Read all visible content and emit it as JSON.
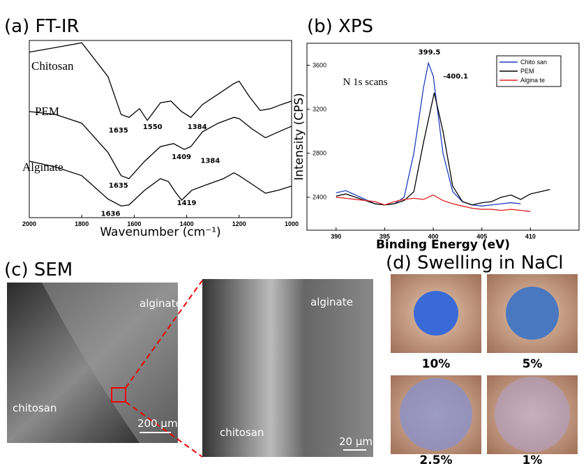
{
  "chart_data": [
    {
      "type": "line",
      "title": "(a) FT-IR",
      "xlabel": "Wavenumber (cm⁻¹)",
      "xlim": [
        2000,
        1000
      ],
      "xticks": [
        2000,
        1800,
        1600,
        1400,
        1200,
        1000
      ],
      "ylim": [
        0,
        100
      ],
      "series": [
        {
          "name": "Chitosan",
          "color": "#000000",
          "x": [
            2000,
            1900,
            1800,
            1700,
            1650,
            1620,
            1580,
            1550,
            1500,
            1460,
            1420,
            1384,
            1340,
            1280,
            1220,
            1200,
            1160,
            1120,
            1080,
            1040,
            1000
          ],
          "values": [
            93.4,
            96,
            98.7,
            79.6,
            58.2,
            56.6,
            61.5,
            54.9,
            64.8,
            65.8,
            59.9,
            56.6,
            63.8,
            69.7,
            75.7,
            77,
            68.1,
            60.5,
            61.5,
            63.8,
            65.8
          ]
        },
        {
          "name": "PEM",
          "color": "#000000",
          "x": [
            2000,
            1900,
            1800,
            1700,
            1650,
            1620,
            1560,
            1500,
            1450,
            1409,
            1384,
            1340,
            1280,
            1220,
            1200,
            1150,
            1100,
            1050,
            1000
          ],
          "values": [
            59.9,
            58.2,
            53.3,
            36.8,
            23.7,
            22,
            31.9,
            40.1,
            41.8,
            38.5,
            40.1,
            48.4,
            53.3,
            56.6,
            55.9,
            50,
            45.1,
            48.4,
            51.6
          ]
        },
        {
          "name": "Alginate",
          "color": "#000000",
          "x": [
            2000,
            1900,
            1800,
            1700,
            1650,
            1620,
            1560,
            1500,
            1470,
            1440,
            1419,
            1380,
            1320,
            1260,
            1220,
            1200,
            1150,
            1100,
            1050,
            1000
          ],
          "values": [
            31.9,
            28.6,
            23.7,
            10.5,
            6.6,
            7.2,
            15.5,
            22,
            20.4,
            13.8,
            9.9,
            15.5,
            18.8,
            22,
            25.3,
            23.7,
            18.8,
            13.8,
            15.5,
            17.8
          ]
        }
      ],
      "annotations": [
        {
          "text": "1635",
          "x": 1660,
          "y": 48
        },
        {
          "text": "1550",
          "x": 1530,
          "y": 50
        },
        {
          "text": "1384",
          "x": 1360,
          "y": 50
        },
        {
          "text": "1409",
          "x": 1420,
          "y": 33
        },
        {
          "text": "1384",
          "x": 1310,
          "y": 31
        },
        {
          "text": "1635",
          "x": 1660,
          "y": 17
        },
        {
          "text": "1419",
          "x": 1400,
          "y": 7
        },
        {
          "text": "1636",
          "x": 1690,
          "y": 1
        }
      ]
    },
    {
      "type": "line",
      "title": "(b) XPS",
      "xlabel": "Binding Energy (eV)",
      "ylabel": "Intensity (CPS)",
      "xlim": [
        387,
        415
      ],
      "xticks": [
        390,
        395,
        400,
        405,
        410
      ],
      "ylim": [
        2100,
        3800
      ],
      "yticks": [
        2400,
        2800,
        3200,
        3600
      ],
      "legend": "upper right",
      "series": [
        {
          "name": "Chito san",
          "color": "#1f3fbf",
          "x": [
            390,
            391,
            392,
            393,
            394,
            395,
            396,
            397,
            398,
            399,
            399.5,
            400,
            401,
            402,
            403,
            404,
            405,
            406,
            407,
            408,
            409
          ],
          "values": [
            2440,
            2460,
            2420,
            2380,
            2340,
            2330,
            2340,
            2400,
            2800,
            3400,
            3620,
            3500,
            2800,
            2450,
            2360,
            2330,
            2320,
            2330,
            2340,
            2350,
            2340
          ]
        },
        {
          "name": "PEM",
          "color": "#000000",
          "x": [
            390,
            391,
            392,
            393,
            394,
            395,
            396,
            397,
            398,
            399,
            400.1,
            401,
            402,
            403,
            404,
            405,
            406,
            407,
            408,
            409,
            410,
            411,
            412
          ],
          "values": [
            2410,
            2430,
            2400,
            2370,
            2340,
            2330,
            2340,
            2370,
            2450,
            2900,
            3350,
            3000,
            2500,
            2360,
            2330,
            2350,
            2360,
            2400,
            2420,
            2380,
            2430,
            2450,
            2470
          ]
        },
        {
          "name": "Algina te",
          "color": "#e02020",
          "x": [
            390,
            391,
            392,
            393,
            394,
            395,
            396,
            397,
            398,
            399,
            400,
            401,
            402,
            403,
            404,
            405,
            406,
            407,
            408,
            409,
            410
          ],
          "values": [
            2400,
            2390,
            2380,
            2370,
            2360,
            2330,
            2360,
            2380,
            2390,
            2380,
            2420,
            2370,
            2340,
            2320,
            2300,
            2290,
            2290,
            2280,
            2290,
            2280,
            2270
          ]
        }
      ],
      "annotations": [
        {
          "text": "399.5",
          "x": 399.6,
          "y": 3700
        },
        {
          "text": "-400.1",
          "x": 402.3,
          "y": 3480
        },
        {
          "text": "N 1s scans",
          "x": 393,
          "y": 3420
        }
      ]
    }
  ],
  "panels": {
    "sem": {
      "title": "(c) SEM",
      "left_labels": [
        "alginate",
        "chitosan"
      ],
      "left_scale": "200 µm",
      "right_labels": [
        "alginate",
        "chitosan"
      ],
      "right_scale": "20 µm"
    },
    "swelling": {
      "title": "(d) Swelling in NaCl",
      "captions": [
        "10%",
        "5%",
        "2.5%",
        "1%"
      ]
    }
  }
}
